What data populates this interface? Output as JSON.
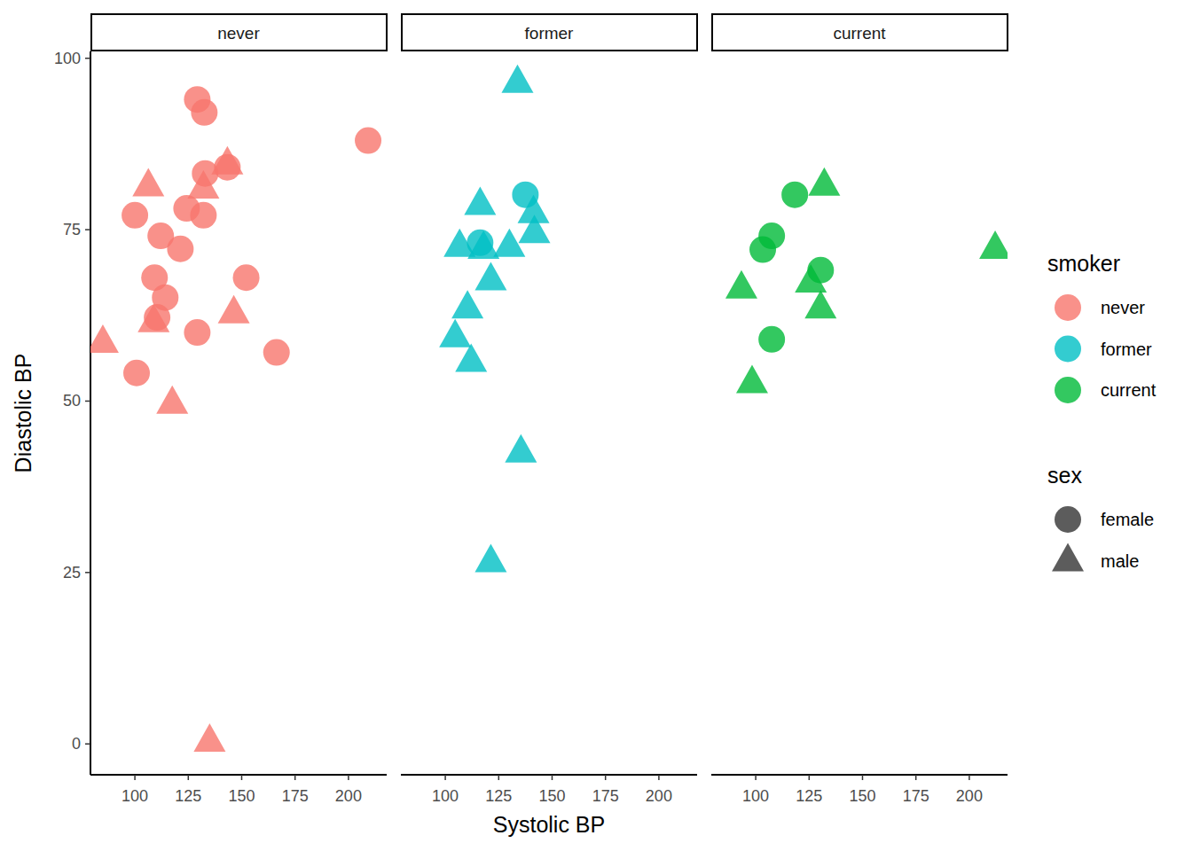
{
  "chart_data": {
    "type": "scatter",
    "x_label": "Systolic BP",
    "y_label": "Diastolic BP",
    "facets": [
      "never",
      "former",
      "current"
    ],
    "xlim": [
      79.2,
      217.9
    ],
    "xticks": [
      100,
      125,
      150,
      175,
      200
    ],
    "ylim": [
      -4.5,
      101
    ],
    "yticks": [
      0,
      25,
      50,
      75,
      100
    ],
    "legend_groups": [
      {
        "title": "smoker",
        "entries": [
          {
            "name": "never",
            "color": "#F8766D"
          },
          {
            "name": "former",
            "color": "#00BFC4"
          },
          {
            "name": "current",
            "color": "#00BA38"
          }
        ]
      },
      {
        "title": "sex",
        "entries": [
          {
            "name": "female",
            "marker": "circle"
          },
          {
            "name": "male",
            "marker": "triangle"
          }
        ]
      }
    ],
    "series": [
      {
        "name": "never",
        "sex": "female",
        "color": "#F8766D",
        "marker": "circle",
        "x": [
          129.2,
          132.5,
          209.2,
          132.9,
          143.3,
          100,
          124.2,
          132.1,
          112.1,
          121.3,
          109.2,
          152.1,
          114.2,
          110.4,
          129.2,
          166.3,
          100.8
        ],
        "values": [
          94.0,
          92.1,
          88.0,
          83.2,
          84.1,
          77.1,
          78.1,
          77.1,
          74.1,
          72.2,
          68.0,
          68.0,
          65.1,
          62.2,
          60.0,
          57.1,
          54.1
        ]
      },
      {
        "name": "never",
        "sex": "male",
        "color": "#F8766D",
        "marker": "triangle",
        "x": [
          143.3,
          106.3,
          132.1,
          108.8,
          146.3,
          85.0,
          117.5,
          135.0
        ],
        "values": [
          84.6,
          81.4,
          81.1,
          61.6,
          62.9,
          58.6,
          49.7,
          0.4
        ]
      },
      {
        "name": "former",
        "sex": "female",
        "color": "#00BFC4",
        "marker": "circle",
        "x": [
          137.5,
          116.3
        ],
        "values": [
          80.1,
          73.1
        ]
      },
      {
        "name": "former",
        "sex": "male",
        "color": "#00BFC4",
        "marker": "triangle",
        "x": [
          133.8,
          116.3,
          141.3,
          106.7,
          117.9,
          130.0,
          141.7,
          121.3,
          110.4,
          104.6,
          112.1,
          135.4,
          121.3
        ],
        "values": [
          96.5,
          78.7,
          77.5,
          72.6,
          72.3,
          72.6,
          74.6,
          67.7,
          63.6,
          59.4,
          55.8,
          42.6,
          26.6
        ]
      },
      {
        "name": "current",
        "sex": "female",
        "color": "#00BA38",
        "marker": "circle",
        "x": [
          118.3,
          107.5,
          103.3,
          130.4,
          107.5
        ],
        "values": [
          80.1,
          74.1,
          72.1,
          69.1,
          59.0
        ]
      },
      {
        "name": "current",
        "sex": "male",
        "color": "#00BA38",
        "marker": "triangle",
        "x": [
          132.1,
          93.3,
          212.1,
          125.8,
          130.4,
          98.3
        ],
        "values": [
          81.5,
          66.5,
          72.3,
          67.4,
          63.6,
          52.7
        ]
      }
    ]
  }
}
